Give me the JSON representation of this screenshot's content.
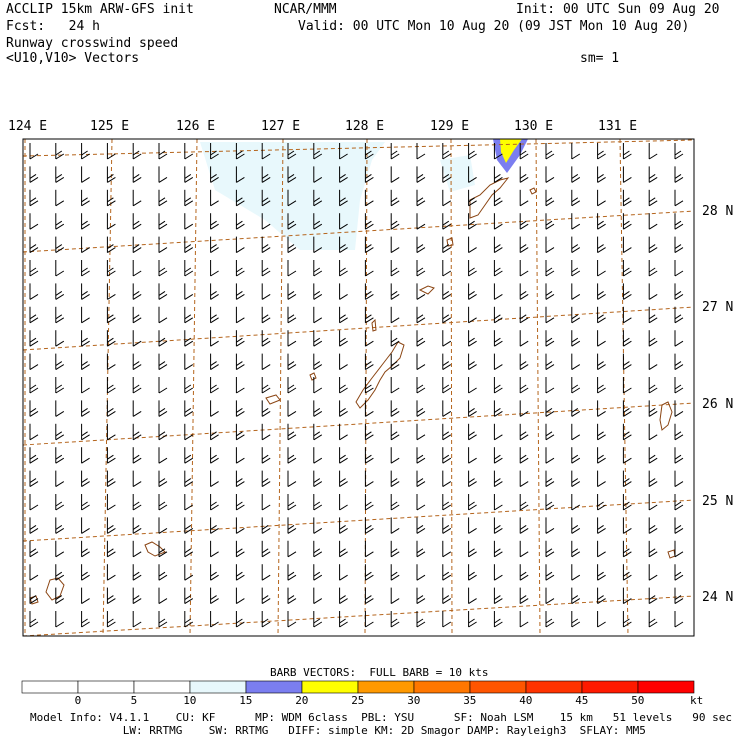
{
  "header": {
    "model": "ACCLIP 15km ARW-GFS init",
    "org": "NCAR/MMM",
    "init": "Init: 00 UTC Sun 09 Aug 20",
    "fcst": "Fcst:   24 h",
    "valid": "Valid: 00 UTC Mon 10 Aug 20 (09 JST Mon 10 Aug 20)",
    "field": "Runway crosswind speed",
    "vectors": "<U10,V10> Vectors",
    "smooth": "sm= 1"
  },
  "map": {
    "lon_labels": [
      "124 E",
      "125 E",
      "126 E",
      "127 E",
      "128 E",
      "129 E",
      "130 E",
      "131 E"
    ],
    "lat_labels": [
      "28 N",
      "27 N",
      "26 N",
      "25 N",
      "24 N"
    ],
    "colors": {
      "gridline": "#b5651d",
      "coastline": "#8b4513",
      "shade_15_20": "#e8f8fc",
      "shade_20_25": "#7b7ef0",
      "shade_25_30": "#ffff00"
    }
  },
  "colorbar": {
    "title": "BARB VECTORS:  FULL BARB = 10 kts",
    "ticks": [
      "0",
      "5",
      "10",
      "15",
      "20",
      "25",
      "30",
      "35",
      "40",
      "45",
      "50"
    ],
    "unit": "kt",
    "colors": [
      "#ffffff",
      "#ffffff",
      "#ffffff",
      "#e8f8fc",
      "#7b7ef0",
      "#ffff00",
      "#ff9900",
      "#ff7700",
      "#ff5500",
      "#ff3300",
      "#ff1a00",
      "#ff0000"
    ]
  },
  "footer": {
    "line1": "Model Info: V4.1.1    CU: KF      MP: WDM 6class  PBL: YSU      SF: Noah LSM    15 km   51 levels   90 sec",
    "line2": "              LW: RRTMG    SW: RRTMG   DIFF: simple KM: 2D Smagor DAMP: Rayleigh3  SFLAY: MM5"
  }
}
